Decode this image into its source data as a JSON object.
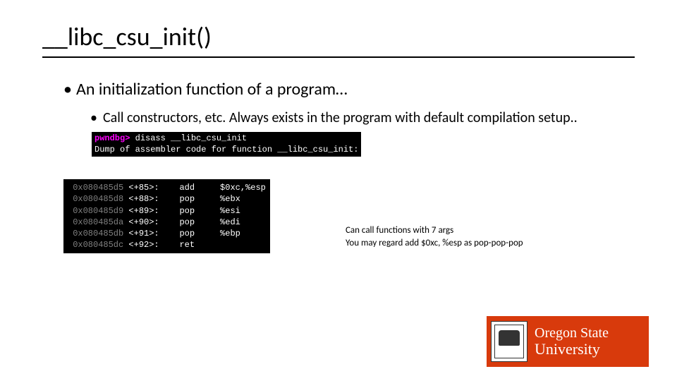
{
  "title": "__libc_csu_init()",
  "bullet1": "An initialization function of a program…",
  "bullet2": "Call constructors, etc. Always exists in the program with default compilation setup..",
  "terminal": {
    "prompt": "pwndbg>",
    "cmd": " disass __libc_csu_init",
    "dump": "Dump of assembler code for function __libc_csu_init:"
  },
  "disasm": {
    "rows": [
      {
        "addr": "0x080485d5",
        "off": "<+85>:",
        "op": "add",
        "args": "$0xc,%esp"
      },
      {
        "addr": "0x080485d8",
        "off": "<+88>:",
        "op": "pop",
        "args": "%ebx"
      },
      {
        "addr": "0x080485d9",
        "off": "<+89>:",
        "op": "pop",
        "args": "%esi"
      },
      {
        "addr": "0x080485da",
        "off": "<+90>:",
        "op": "pop",
        "args": "%edi"
      },
      {
        "addr": "0x080485db",
        "off": "<+91>:",
        "op": "pop",
        "args": "%ebp"
      },
      {
        "addr": "0x080485dc",
        "off": "<+92>:",
        "op": "ret",
        "args": ""
      }
    ]
  },
  "note": {
    "l1": "Can call functions with 7 args",
    "l2": "You may regard add $0xc, %esp as pop-pop-pop"
  },
  "logo": {
    "line1": "Oregon State",
    "line2": "University",
    "bg": "#d83a0c",
    "fg": "#ffffff"
  },
  "colors": {
    "title_underline": "#000000",
    "term_bg": "#000000",
    "term_prompt": "#ff00ff",
    "term_text": "#ffffff",
    "addr_color": "#808080",
    "page_bg": "#ffffff"
  }
}
